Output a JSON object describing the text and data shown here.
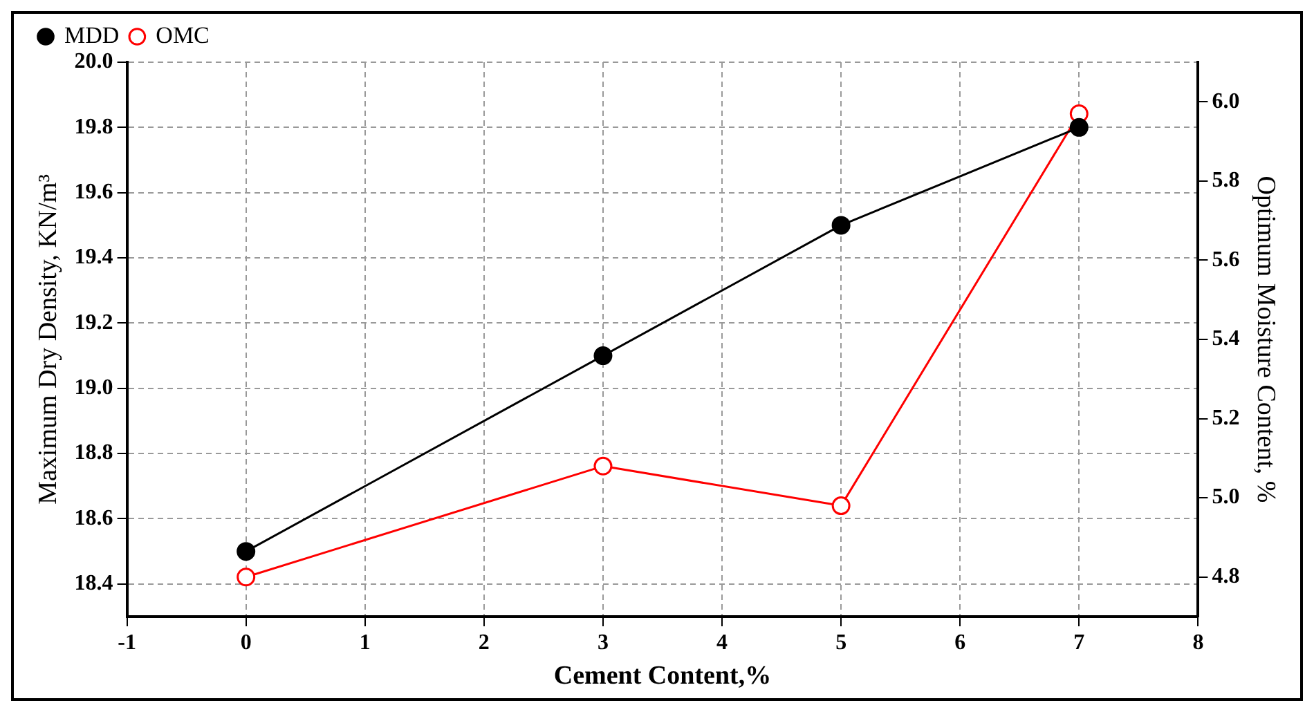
{
  "chart_data": {
    "type": "line",
    "xlabel": "Cement Content,%",
    "ylabel": "Maximum Dry Density, KN/m³",
    "y2label": "Optimum Moisture Content, %",
    "x": [
      0,
      3,
      5,
      7
    ],
    "series": [
      {
        "name": "MDD",
        "color": "#000000",
        "marker": "circle",
        "values": [
          18.5,
          19.1,
          19.5,
          19.8
        ]
      },
      {
        "name": "OMC",
        "color": "#ff0000",
        "marker": "circle",
        "axis": "y2",
        "values": [
          4.8,
          5.08,
          4.98,
          5.97
        ]
      }
    ],
    "xlim": [
      -1,
      8
    ],
    "xticks": [
      -1,
      0,
      1,
      2,
      3,
      4,
      5,
      6,
      7,
      8
    ],
    "ylim": [
      18.3,
      20.0
    ],
    "yticks": [
      {
        "value": 18.4,
        "label": "18.4"
      },
      {
        "value": 18.6,
        "label": "18.6"
      },
      {
        "value": 18.8,
        "label": "18.8"
      },
      {
        "value": 19.0,
        "label": "19.0"
      },
      {
        "value": 19.2,
        "label": "19.2"
      },
      {
        "value": 19.4,
        "label": "19.4"
      },
      {
        "value": 19.6,
        "label": "19.6"
      },
      {
        "value": 19.8,
        "label": "19.8"
      },
      {
        "value": 20.0,
        "label": "20.0"
      }
    ],
    "y2lim": [
      4.7,
      6.1
    ],
    "y2ticks": [
      {
        "value": 4.8,
        "label": "4.8"
      },
      {
        "value": 5.0,
        "label": "5.0"
      },
      {
        "value": 5.2,
        "label": "5.2"
      },
      {
        "value": 5.4,
        "label": "5.4"
      },
      {
        "value": 5.6,
        "label": "5.6"
      },
      {
        "value": 5.8,
        "label": "5.8"
      },
      {
        "value": 6.0,
        "label": "6.0"
      }
    ],
    "grid": true,
    "legend": "top left",
    "line_style": "solid"
  }
}
